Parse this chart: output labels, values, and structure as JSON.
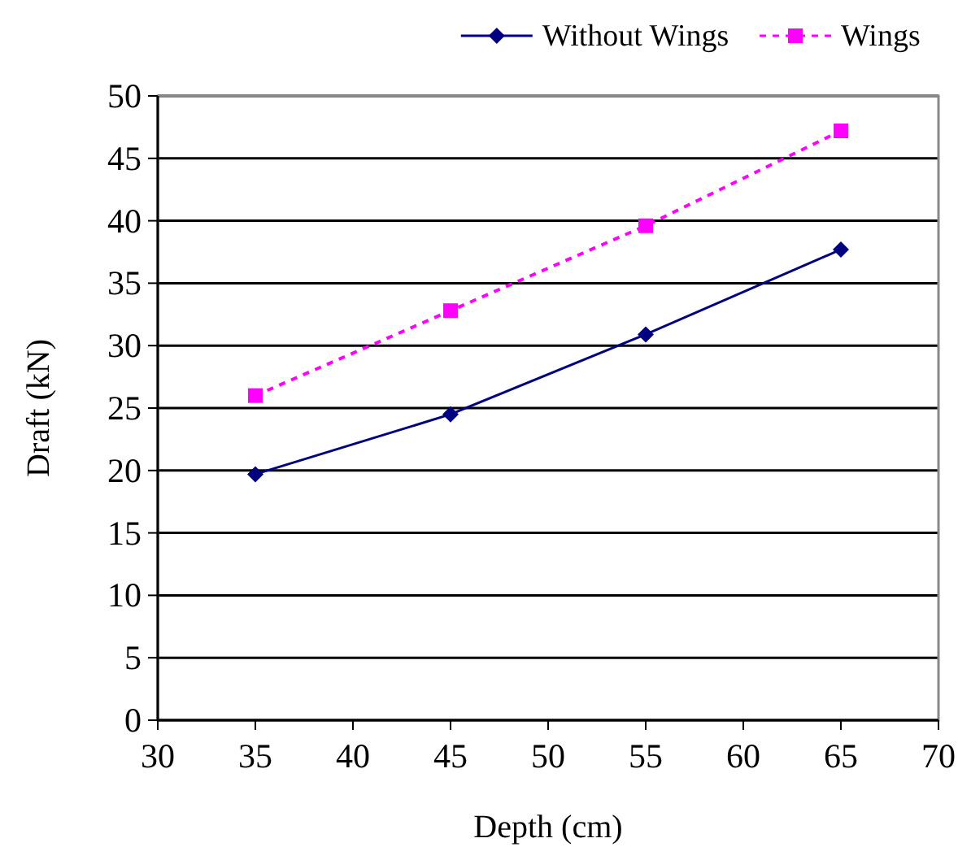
{
  "chart_data": {
    "type": "line",
    "xlabel": "Depth (cm)",
    "ylabel": "Draft (kN)",
    "x": [
      35,
      45,
      55,
      65
    ],
    "series": [
      {
        "name": "Without Wings",
        "color": "#000080",
        "values": [
          19.7,
          24.5,
          30.9,
          37.7
        ],
        "marker": "diamond",
        "line_style": "solid"
      },
      {
        "name": "Wings",
        "color": "#ff00ff",
        "values": [
          26,
          32.8,
          39.6,
          47.2
        ],
        "marker": "square",
        "line_style": "dashed"
      }
    ],
    "xlim": [
      30,
      70
    ],
    "xticks": [
      30,
      35,
      40,
      45,
      50,
      55,
      60,
      65,
      70
    ],
    "ylim": [
      0,
      50
    ],
    "yticks": [
      0,
      5,
      10,
      15,
      20,
      25,
      30,
      35,
      40,
      45,
      50
    ],
    "grid": "y",
    "legend": "top right"
  }
}
